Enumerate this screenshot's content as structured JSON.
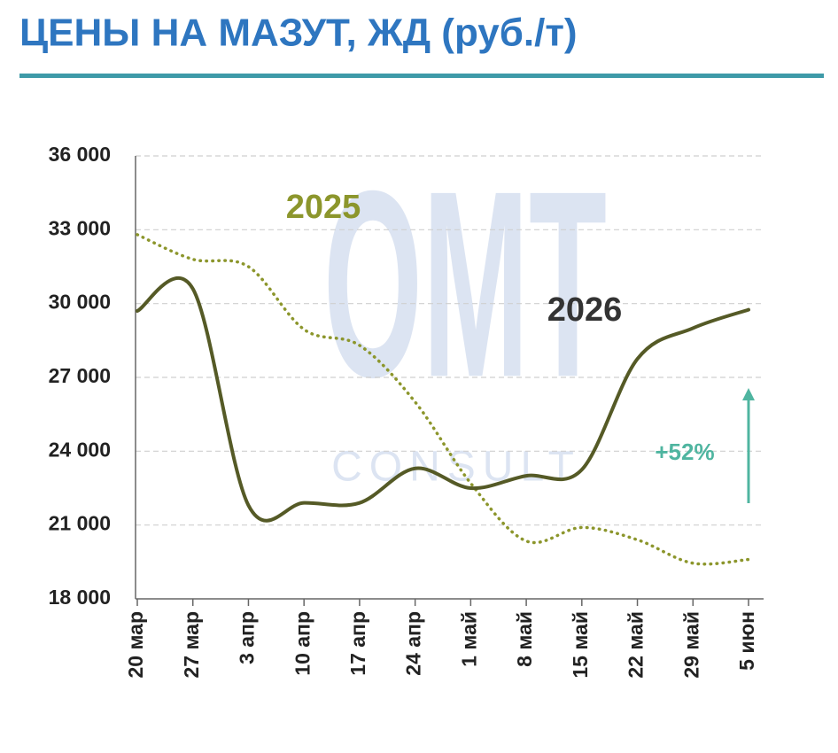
{
  "chart_data": {
    "type": "line",
    "title": "ЦЕНЫ НА МАЗУТ, ЖД (руб./т)",
    "categories": [
      "20 мар",
      "27 мар",
      "3 апр",
      "10 апр",
      "17 апр",
      "24 апр",
      "1 май",
      "8 май",
      "15 май",
      "22 май",
      "29 май",
      "5 июн"
    ],
    "series": [
      {
        "name": "2025",
        "color": "#8c962c",
        "style": "dotted",
        "values": [
          32800,
          31800,
          31500,
          28950,
          28300,
          26000,
          22700,
          20350,
          20900,
          20400,
          19450,
          19600
        ]
      },
      {
        "name": "2026",
        "color": "#555a26",
        "style": "solid",
        "values": [
          29700,
          30600,
          21800,
          21900,
          21900,
          23300,
          22500,
          23000,
          23250,
          27750,
          29000,
          29750
        ]
      }
    ],
    "ylim": [
      18000,
      36000
    ],
    "yticks": [
      {
        "value": 18000,
        "label": "18 000"
      },
      {
        "value": 21000,
        "label": "21 000"
      },
      {
        "value": 24000,
        "label": "24 000"
      },
      {
        "value": 27000,
        "label": "27 000"
      },
      {
        "value": 30000,
        "label": "30 000"
      },
      {
        "value": 33000,
        "label": "33 000"
      },
      {
        "value": 36000,
        "label": "36 000"
      }
    ],
    "grid": true,
    "annotation": "+52%",
    "annotation_color": "#4fb5a0",
    "watermark": {
      "main": "OMT",
      "sub": "CONSULT"
    }
  }
}
